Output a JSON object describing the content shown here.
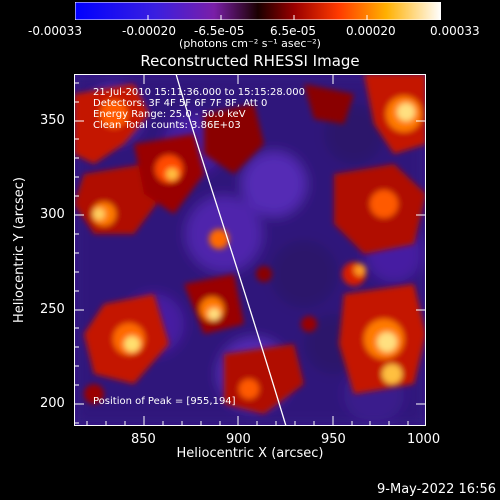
{
  "colorbar": {
    "tick_labels": [
      "-0.00033",
      "-0.00020",
      "-6.5e-05",
      "6.5e-05",
      "0.00020",
      "0.00033"
    ],
    "units_label": "(photons cm⁻² s⁻¹ asec⁻²)"
  },
  "title": "Reconstructed RHESSI Image",
  "info": {
    "line1": "21-Jul-2010 15:11:36.000 to 15:15:28.000",
    "line2": "Detectors: 3F 4F 5F 6F 7F 8F, Att 0",
    "line3": "Energy Range: 25.0 - 50.0 keV",
    "line4": "Clean    Total counts: 3.86E+03",
    "peak": "Position of Peak = [955,194]"
  },
  "axes": {
    "xlabel": "Heliocentric X (arcsec)",
    "ylabel": "Heliocentric Y (arcsec)",
    "x_ticks": [
      "850",
      "900",
      "950",
      "1000"
    ],
    "y_ticks": [
      "200",
      "250",
      "300",
      "350"
    ]
  },
  "footer": "9-May-2022 16:56"
}
